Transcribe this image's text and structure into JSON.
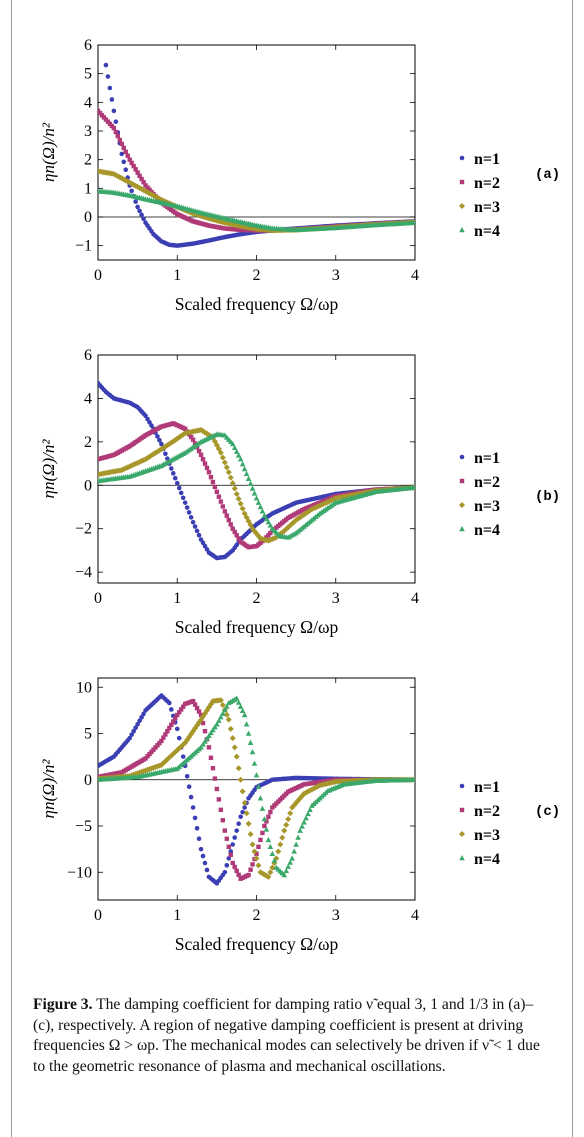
{
  "caption": {
    "label": "Figure 3.",
    "text": "The damping coefficient for damping ratio ν̃ equal 3, 1 and 1/3 in (a)–(c), respectively. A region of negative damping coefficient is present at driving frequencies Ω > ωp. The mechanical modes can selectively be driven if ν̃ < 1 due to the geometric resonance of plasma and mechanical oscillations."
  },
  "legend": {
    "entries": [
      "n=1",
      "n=2",
      "n=3",
      "n=4"
    ]
  },
  "colors": {
    "n1": "#3b3fb3",
    "n2": "#b03a78",
    "n3": "#a7962a",
    "n4": "#3aa86b"
  },
  "chart_data": [
    {
      "type": "scatter",
      "panel_label": "(a)",
      "xlabel": "Scaled frequency Ω/ωp",
      "ylabel": "ηn(Ω)/n²",
      "xlim": [
        0,
        4
      ],
      "ylim": [
        -1.5,
        6
      ],
      "xticks": [
        "0",
        "1",
        "2",
        "3",
        "4"
      ],
      "yticks": [
        "6",
        "5",
        "4",
        "3",
        "2",
        "1",
        "0",
        "−1"
      ],
      "grid": false,
      "legend_position": "right",
      "series": [
        {
          "name": "n=1",
          "x": [
            0.1,
            0.2,
            0.3,
            0.4,
            0.5,
            0.6,
            0.7,
            0.8,
            0.9,
            1.0,
            1.2,
            1.4,
            1.6,
            1.8,
            2.0,
            2.2,
            2.5,
            3.0,
            3.5,
            4.0
          ],
          "y": [
            5.3,
            3.7,
            2.2,
            1.1,
            0.35,
            -0.2,
            -0.6,
            -0.85,
            -0.97,
            -1.0,
            -0.93,
            -0.82,
            -0.7,
            -0.6,
            -0.52,
            -0.47,
            -0.4,
            -0.3,
            -0.22,
            -0.15
          ]
        },
        {
          "name": "n=2",
          "x": [
            0,
            0.2,
            0.4,
            0.6,
            0.8,
            1.0,
            1.2,
            1.4,
            1.6,
            1.8,
            2.0,
            2.2,
            2.5,
            3.0,
            3.5,
            4.0
          ],
          "y": [
            3.7,
            3.1,
            2.0,
            1.1,
            0.5,
            0.1,
            -0.15,
            -0.3,
            -0.4,
            -0.45,
            -0.47,
            -0.47,
            -0.43,
            -0.33,
            -0.24,
            -0.17
          ]
        },
        {
          "name": "n=3",
          "x": [
            0,
            0.2,
            0.4,
            0.6,
            0.8,
            1.0,
            1.2,
            1.4,
            1.6,
            1.8,
            2.0,
            2.2,
            2.5,
            3.0,
            3.5,
            4.0
          ],
          "y": [
            1.6,
            1.5,
            1.2,
            0.9,
            0.6,
            0.35,
            0.12,
            -0.05,
            -0.2,
            -0.32,
            -0.42,
            -0.47,
            -0.45,
            -0.36,
            -0.26,
            -0.18
          ]
        },
        {
          "name": "n=4",
          "x": [
            0,
            0.2,
            0.4,
            0.6,
            0.8,
            1.0,
            1.2,
            1.4,
            1.6,
            1.8,
            2.0,
            2.2,
            2.5,
            3.0,
            3.5,
            4.0
          ],
          "y": [
            0.9,
            0.85,
            0.75,
            0.62,
            0.5,
            0.37,
            0.22,
            0.08,
            -0.05,
            -0.18,
            -0.3,
            -0.4,
            -0.45,
            -0.38,
            -0.28,
            -0.2
          ]
        }
      ]
    },
    {
      "type": "scatter",
      "panel_label": "(b)",
      "xlabel": "Scaled frequency Ω/ωp",
      "ylabel": "ηn(Ω)/n²",
      "xlim": [
        0,
        4
      ],
      "ylim": [
        -4.5,
        6
      ],
      "xticks": [
        "0",
        "1",
        "2",
        "3",
        "4"
      ],
      "yticks": [
        "6",
        "4",
        "2",
        "0",
        "−2",
        "−4"
      ],
      "grid": false,
      "legend_position": "right",
      "series": [
        {
          "name": "n=1",
          "x": [
            0,
            0.1,
            0.2,
            0.3,
            0.4,
            0.5,
            0.6,
            0.7,
            0.8,
            0.9,
            1.0,
            1.1,
            1.2,
            1.3,
            1.4,
            1.5,
            1.6,
            1.7,
            1.8,
            2.0,
            2.2,
            2.5,
            3.0,
            3.5,
            4.0
          ],
          "y": [
            4.7,
            4.3,
            4.0,
            3.9,
            3.8,
            3.6,
            3.2,
            2.6,
            1.9,
            1.0,
            0.1,
            -0.8,
            -1.7,
            -2.5,
            -3.1,
            -3.35,
            -3.3,
            -3.0,
            -2.5,
            -1.8,
            -1.3,
            -0.8,
            -0.4,
            -0.2,
            -0.1
          ]
        },
        {
          "name": "n=2",
          "x": [
            0,
            0.2,
            0.4,
            0.6,
            0.8,
            0.95,
            1.1,
            1.2,
            1.3,
            1.4,
            1.5,
            1.6,
            1.7,
            1.8,
            1.9,
            2.0,
            2.1,
            2.2,
            2.4,
            2.6,
            3.0,
            3.5,
            4.0
          ],
          "y": [
            1.2,
            1.4,
            1.8,
            2.3,
            2.7,
            2.85,
            2.6,
            2.1,
            1.4,
            0.6,
            -0.3,
            -1.2,
            -2.0,
            -2.6,
            -2.85,
            -2.8,
            -2.5,
            -2.1,
            -1.5,
            -1.1,
            -0.5,
            -0.2,
            -0.1
          ]
        },
        {
          "name": "n=3",
          "x": [
            0,
            0.3,
            0.6,
            0.9,
            1.1,
            1.3,
            1.45,
            1.55,
            1.65,
            1.75,
            1.85,
            1.95,
            2.05,
            2.15,
            2.25,
            2.35,
            2.5,
            2.7,
            3.0,
            3.5,
            4.0
          ],
          "y": [
            0.5,
            0.7,
            1.2,
            1.9,
            2.4,
            2.55,
            2.2,
            1.5,
            0.6,
            -0.4,
            -1.3,
            -2.0,
            -2.45,
            -2.55,
            -2.4,
            -2.1,
            -1.6,
            -1.1,
            -0.6,
            -0.25,
            -0.1
          ]
        },
        {
          "name": "n=4",
          "x": [
            0,
            0.4,
            0.8,
            1.1,
            1.3,
            1.5,
            1.6,
            1.7,
            1.8,
            1.9,
            2.0,
            2.1,
            2.2,
            2.3,
            2.4,
            2.5,
            2.6,
            2.8,
            3.0,
            3.5,
            4.0
          ],
          "y": [
            0.2,
            0.4,
            0.9,
            1.5,
            2.0,
            2.35,
            2.3,
            1.9,
            1.2,
            0.3,
            -0.6,
            -1.4,
            -2.0,
            -2.35,
            -2.4,
            -2.2,
            -1.9,
            -1.3,
            -0.8,
            -0.3,
            -0.1
          ]
        }
      ]
    },
    {
      "type": "scatter",
      "panel_label": "(c)",
      "xlabel": "Scaled frequency Ω/ωp",
      "ylabel": "ηn(Ω)/n²",
      "xlim": [
        0,
        4
      ],
      "ylim": [
        -13,
        11
      ],
      "xticks": [
        "0",
        "1",
        "2",
        "3",
        "4"
      ],
      "yticks": [
        "10",
        "5",
        "0",
        "−5",
        "−10"
      ],
      "grid": false,
      "legend_position": "right",
      "series": [
        {
          "name": "n=1",
          "x": [
            0,
            0.2,
            0.4,
            0.6,
            0.8,
            0.9,
            1.0,
            1.1,
            1.2,
            1.3,
            1.4,
            1.5,
            1.6,
            1.7,
            1.8,
            1.9,
            2.0,
            2.2,
            2.5,
            3.0,
            3.5,
            4.0
          ],
          "y": [
            1.5,
            2.5,
            4.5,
            7.5,
            9.1,
            8.3,
            5.5,
            1.5,
            -3.0,
            -7.5,
            -10.5,
            -11.2,
            -10.0,
            -7.0,
            -4.0,
            -2.0,
            -0.8,
            0.0,
            0.2,
            0.1,
            0.05,
            0.0
          ]
        },
        {
          "name": "n=2",
          "x": [
            0,
            0.3,
            0.6,
            0.8,
            1.0,
            1.1,
            1.2,
            1.3,
            1.4,
            1.5,
            1.6,
            1.7,
            1.8,
            1.9,
            2.0,
            2.1,
            2.2,
            2.4,
            2.6,
            3.0,
            3.5,
            4.0
          ],
          "y": [
            0.3,
            0.8,
            2.3,
            4.2,
            7.0,
            8.2,
            8.5,
            7.0,
            3.5,
            -1.0,
            -5.5,
            -9.0,
            -10.7,
            -10.3,
            -8.0,
            -5.0,
            -3.0,
            -1.3,
            -0.5,
            0.0,
            0.0,
            0.0
          ]
        },
        {
          "name": "n=3",
          "x": [
            0,
            0.4,
            0.8,
            1.1,
            1.3,
            1.45,
            1.55,
            1.65,
            1.75,
            1.85,
            1.95,
            2.05,
            2.15,
            2.25,
            2.35,
            2.45,
            2.6,
            2.8,
            3.0,
            3.5,
            4.0
          ],
          "y": [
            0.1,
            0.4,
            1.6,
            4.0,
            6.5,
            8.5,
            8.6,
            6.5,
            2.5,
            -2.5,
            -7.0,
            -10.0,
            -10.5,
            -8.5,
            -5.5,
            -3.0,
            -1.5,
            -0.6,
            -0.2,
            0.0,
            0.0
          ]
        },
        {
          "name": "n=4",
          "x": [
            0,
            0.5,
            1.0,
            1.3,
            1.5,
            1.65,
            1.75,
            1.85,
            1.95,
            2.05,
            2.15,
            2.25,
            2.35,
            2.45,
            2.55,
            2.7,
            2.9,
            3.1,
            3.5,
            4.0
          ],
          "y": [
            0.0,
            0.3,
            1.2,
            3.5,
            6.0,
            8.3,
            8.8,
            7.0,
            3.0,
            -2.0,
            -6.5,
            -9.5,
            -10.3,
            -8.5,
            -5.5,
            -2.8,
            -1.2,
            -0.5,
            -0.1,
            0.0
          ]
        }
      ]
    }
  ]
}
